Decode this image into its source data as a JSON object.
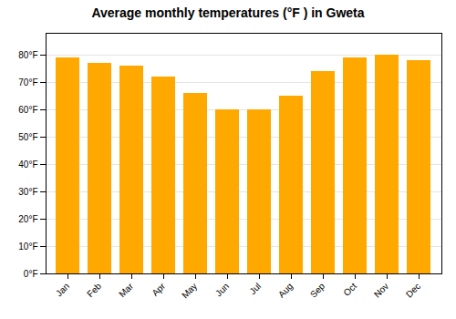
{
  "chart_data": {
    "type": "bar",
    "title": "Average monthly temperatures (°F ) in Gweta",
    "categories": [
      "Jan",
      "Feb",
      "Mar",
      "Apr",
      "May",
      "Jun",
      "Jul",
      "Aug",
      "Sep",
      "Oct",
      "Nov",
      "Dec"
    ],
    "values": [
      79,
      77,
      76,
      72,
      66,
      60,
      60,
      65,
      74,
      79,
      80,
      78
    ],
    "color": "#FFA800",
    "ylim": [
      0,
      88
    ],
    "yticks": [
      {
        "value": 0,
        "label": "0°F"
      },
      {
        "value": 10,
        "label": "10°F"
      },
      {
        "value": 20,
        "label": "20°F"
      },
      {
        "value": 30,
        "label": "30°F"
      },
      {
        "value": 40,
        "label": "40°F"
      },
      {
        "value": 50,
        "label": "50°F"
      },
      {
        "value": 60,
        "label": "60°F"
      },
      {
        "value": 70,
        "label": "70°F"
      },
      {
        "value": 80,
        "label": "80°F"
      }
    ],
    "grid": true
  }
}
